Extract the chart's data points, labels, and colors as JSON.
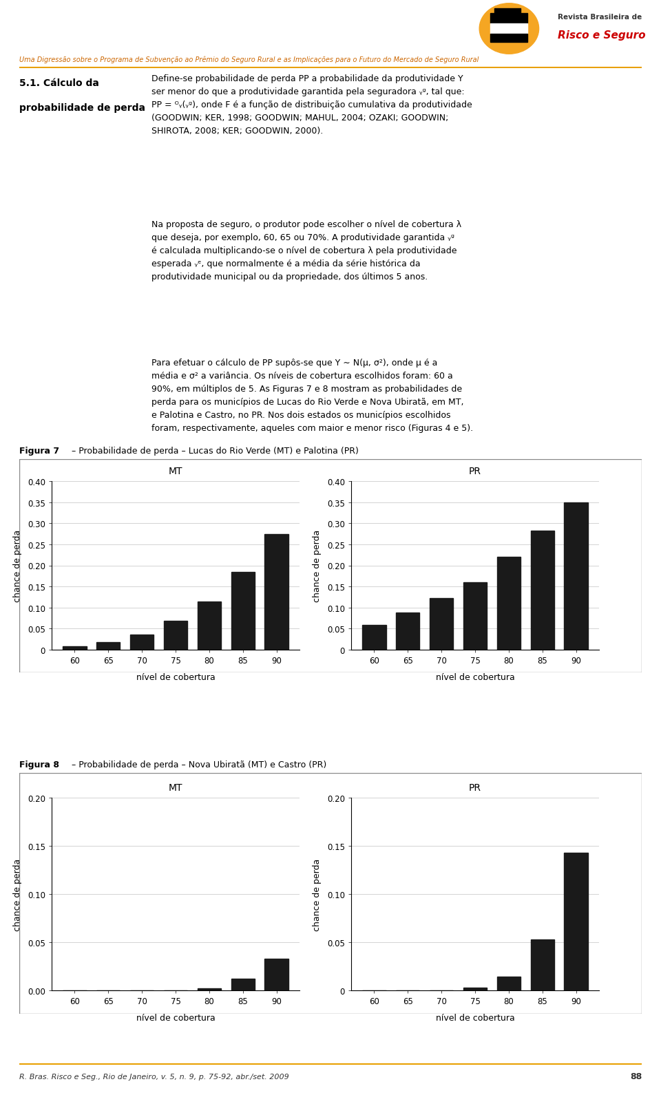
{
  "page_bg": "#ffffff",
  "header_subtitle": "Uma Digressão sobre o Programa de Subvenção ao Prêmio do Seguro Rural e as Implicações para o Futuro do Mercado de Seguro Rural",
  "header_journal_text1": "Revista Brasileira de",
  "header_journal_text2": "Risco e Seguro",
  "section_title_line1": "5.1. Cálculo da",
  "section_title_line2": "probabilidade de perda",
  "para1": "Define-se probabilidade de perda PP a probabilidade da produtividade Y ser menor do que a produtividade garantida pela seguradora yg, tal que: PP = FY(yg), onde F é a função de distribuição cumulativa da produtividade (GOODWIN; KER, 1998; GOODWIN; MAHUL, 2004; OZAKI; GOODWIN; SHIROTA, 2008; KER; GOODWIN, 2000).",
  "para2": "Na proposta de seguro, o produtor pode escolher o nível de cobertura λ que deseja, por exemplo, 60, 65 ou 70%. A produtividade garantida yg é calculada multiplicando-se o nível de cobertura λ pela produtividade esperada ye, que normalmente é a média da série histórica da produtividade municipal ou da propriedade, dos últimos 5 anos.",
  "para3": "Para efetuar o cálculo de PP supôs-se que Y ~ N(μ, σ²), onde μ é a média e σ² a variância. Os níveis de cobertura escolhidos foram: 60 a 90%, em múltiplos de 5. As Figuras 7 e 8 mostram as probabilidades de perda para os municípios de Lucas do Rio Verde e Nova Ubiratã, em MT, e Palotina e Castro, no PR. Nos dois estados os municípios escolhidos foram, respectivamente, aqueles com maior e menor risco (Figuras 4 e 5).",
  "fig7_title": "Figura 7 – Probabilidade de perda – Lucas do Rio Verde (MT) e Palotina (PR)",
  "fig8_title": "Figura 8 – Probabilidade de perda – Nova Ubiratã (MT) e Castro (PR)",
  "mt_label": "MT",
  "pr_label": "PR",
  "x_categories": [
    60,
    65,
    70,
    75,
    80,
    85,
    90
  ],
  "xlabel": "nível de cobertura",
  "ylabel": "chance de perda",
  "fig7_mt_values": [
    0.008,
    0.018,
    0.036,
    0.068,
    0.115,
    0.185,
    0.275
  ],
  "fig7_pr_values": [
    0.058,
    0.088,
    0.122,
    0.16,
    0.22,
    0.283,
    0.35
  ],
  "fig8_mt_values": [
    0.0,
    0.0,
    0.0,
    0.0,
    0.002,
    0.012,
    0.033
  ],
  "fig8_pr_values": [
    0.0,
    0.0,
    0.0,
    0.003,
    0.014,
    0.053,
    0.143
  ],
  "fig7_ylim": [
    0,
    0.4
  ],
  "fig7_yticks": [
    0,
    0.05,
    0.1,
    0.15,
    0.2,
    0.25,
    0.3,
    0.35,
    0.4
  ],
  "fig8_mt_ylim": [
    0,
    0.2
  ],
  "fig8_mt_yticks": [
    0.0,
    0.05,
    0.1,
    0.15,
    0.2
  ],
  "fig8_pr_ylim": [
    0,
    0.2
  ],
  "fig8_pr_yticks": [
    0,
    0.05,
    0.1,
    0.15,
    0.2
  ],
  "bar_color": "#1a1a1a",
  "footer_text": "R. Bras. Risco e Seg., Rio de Janeiro, v. 5, n. 9, p. 75-92, abr./set. 2009",
  "footer_page": "88"
}
